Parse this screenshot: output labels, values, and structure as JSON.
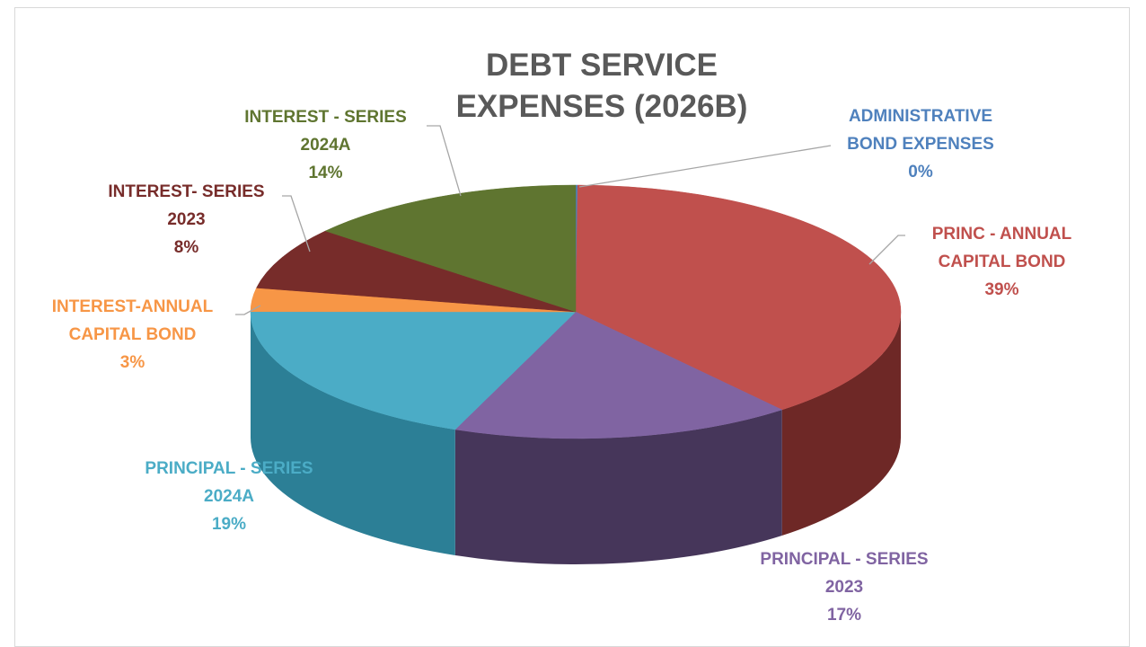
{
  "chart_data": {
    "type": "pie",
    "title_lines": [
      "DEBT SERVICE",
      "EXPENSES (2026B)"
    ],
    "slices": [
      {
        "name_lines": [
          "ADMINISTRATIVE",
          "BOND EXPENSES"
        ],
        "pct_label": "0%",
        "value": 0.1,
        "color": "#4f81bd",
        "side": "#2f4f76"
      },
      {
        "name_lines": [
          "PRINC - ANNUAL",
          "CAPITAL BOND"
        ],
        "pct_label": "39%",
        "value": 39,
        "color": "#c0504d",
        "side": "#6e2826"
      },
      {
        "name_lines": [
          "PRINCIPAL - SERIES",
          "2023"
        ],
        "pct_label": "17%",
        "value": 17,
        "color": "#8064a2",
        "side": "#46365a"
      },
      {
        "name_lines": [
          "PRINCIPAL - SERIES",
          "2024A"
        ],
        "pct_label": "19%",
        "value": 19,
        "color": "#4bacc6",
        "side": "#2c7f96"
      },
      {
        "name_lines": [
          "INTEREST-ANNUAL",
          "CAPITAL BOND"
        ],
        "pct_label": "3%",
        "value": 3,
        "color": "#f79646",
        "side": "#b5682a"
      },
      {
        "name_lines": [
          "INTEREST- SERIES",
          "2023"
        ],
        "pct_label": "8%",
        "value": 8,
        "color": "#772c2a",
        "side": "#4a1b1a"
      },
      {
        "name_lines": [
          "INTEREST - SERIES",
          "2024A"
        ],
        "pct_label": "14%",
        "value": 14,
        "color": "#5f7530",
        "side": "#3b491d"
      }
    ]
  }
}
